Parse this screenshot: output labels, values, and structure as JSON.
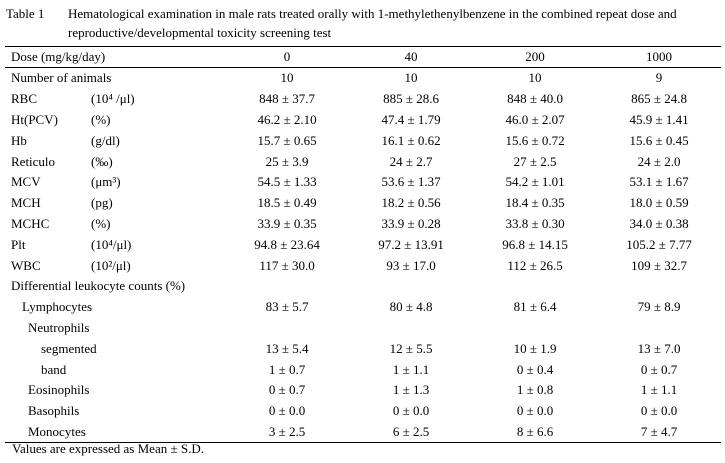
{
  "caption": {
    "number": "Table 1",
    "text": "Hematological examination in male rats treated orally with 1-methylethenylbenzene in the combined repeat dose and reproductive/developmental toxicity screening test"
  },
  "header": {
    "dose_label": "Dose (mg/kg/day)",
    "doses": [
      "0",
      "40",
      "200",
      "1000"
    ]
  },
  "animals": {
    "label": "Number of animals",
    "values": [
      "10",
      "10",
      "10",
      "9"
    ]
  },
  "params": [
    {
      "label": "RBC",
      "unit": "(10⁴ /μl)",
      "values": [
        "848 ± 37.7",
        "885 ± 28.6",
        "848 ± 40.0",
        "865 ± 24.8"
      ]
    },
    {
      "label": "Ht(PCV)",
      "unit": "(%)",
      "values": [
        "46.2 ± 2.10",
        "47.4 ± 1.79",
        "46.0 ± 2.07",
        "45.9 ± 1.41"
      ]
    },
    {
      "label": "Hb",
      "unit": "(g/dl)",
      "values": [
        "15.7 ± 0.65",
        "16.1 ± 0.62",
        "15.6 ± 0.72",
        "15.6 ± 0.45"
      ]
    },
    {
      "label": "Reticulo",
      "unit": "(‰)",
      "values": [
        "25 ± 3.9",
        "24 ± 2.7",
        "27 ± 2.5",
        "24 ± 2.0"
      ]
    },
    {
      "label": "MCV",
      "unit": "(μm³)",
      "values": [
        "54.5 ± 1.33",
        "53.6 ± 1.37",
        "54.2 ± 1.01",
        "53.1 ± 1.67"
      ]
    },
    {
      "label": "MCH",
      "unit": "(pg)",
      "values": [
        "18.5 ± 0.49",
        "18.2 ± 0.56",
        "18.4 ± 0.35",
        "18.0 ± 0.59"
      ]
    },
    {
      "label": "MCHC",
      "unit": "(%)",
      "values": [
        "33.9 ± 0.35",
        "33.9 ± 0.28",
        "33.8 ± 0.30",
        "34.0 ± 0.38"
      ]
    },
    {
      "label": "Plt",
      "unit": "(10⁴/μl)",
      "values": [
        "94.8 ± 23.64",
        "97.2 ± 13.91",
        "96.8 ± 14.15",
        "105.2 ± 7.77"
      ]
    },
    {
      "label": "WBC",
      "unit": "(10²/μl)",
      "values": [
        "117 ± 30.0",
        "93 ± 17.0",
        "112 ± 26.5",
        "109 ± 32.7"
      ]
    }
  ],
  "differential": {
    "label": "Differential leukocyte counts  (%)",
    "lymphocytes": {
      "label": "Lymphocytes",
      "values": [
        "83 ± 5.7",
        "80 ± 4.8",
        "81 ± 6.4",
        "79 ± 8.9"
      ]
    },
    "neutrophils": {
      "label": "Neutrophils"
    },
    "segmented": {
      "label": "segmented",
      "values": [
        "13 ± 5.4",
        "12 ± 5.5",
        "10 ± 1.9",
        "13 ± 7.0"
      ]
    },
    "band": {
      "label": "band",
      "values": [
        "1 ± 0.7",
        "1 ± 1.1",
        "0 ± 0.4",
        "0 ± 0.7"
      ]
    },
    "eosinophils": {
      "label": "Eosinophils",
      "values": [
        "0 ± 0.7",
        "1 ± 1.3",
        "1 ± 0.8",
        "1 ± 1.1"
      ]
    },
    "basophils": {
      "label": "Basophils",
      "values": [
        "0 ± 0.0",
        "0 ± 0.0",
        "0 ± 0.0",
        "0 ± 0.0"
      ]
    },
    "monocytes": {
      "label": "Monocytes",
      "values": [
        "3 ± 2.5",
        "6 ± 2.5",
        "8 ± 6.6",
        "7 ± 4.7"
      ]
    }
  },
  "footnote": "Values are expressed as Mean ± S.D."
}
